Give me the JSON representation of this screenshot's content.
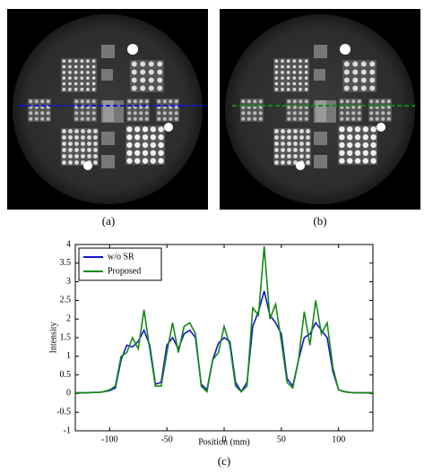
{
  "figure": {
    "captions": [
      "(a)",
      "(b)",
      "(c)"
    ]
  },
  "chart_data": {
    "type": "line",
    "x_label": "Position (mm)",
    "y_label": "Intensity",
    "x": [
      -130,
      -125,
      -120,
      -115,
      -110,
      -105,
      -100,
      -95,
      -90,
      -85,
      -80,
      -75,
      -70,
      -65,
      -60,
      -55,
      -50,
      -45,
      -40,
      -35,
      -30,
      -25,
      -20,
      -15,
      -10,
      -5,
      0,
      5,
      10,
      15,
      20,
      25,
      30,
      35,
      40,
      45,
      50,
      55,
      60,
      65,
      70,
      75,
      80,
      85,
      90,
      95,
      100,
      105,
      110,
      115,
      120,
      125,
      130
    ],
    "series": [
      {
        "name": "w/o SR",
        "color": "#1414d2",
        "values": [
          0.02,
          0.02,
          0.02,
          0.03,
          0.03,
          0.05,
          0.08,
          0.15,
          0.9,
          1.3,
          1.25,
          1.4,
          1.7,
          1.3,
          0.25,
          0.3,
          1.3,
          1.5,
          1.2,
          1.6,
          1.7,
          1.5,
          0.25,
          0.1,
          0.9,
          1.35,
          1.5,
          1.4,
          0.3,
          0.05,
          0.3,
          1.8,
          2.2,
          2.75,
          2.1,
          1.9,
          1.6,
          0.4,
          0.2,
          0.9,
          1.5,
          1.6,
          1.9,
          1.7,
          1.5,
          0.6,
          0.1,
          0.05,
          0.03,
          0.02,
          0.02,
          0.02,
          0.02
        ]
      },
      {
        "name": "Proposed",
        "color": "#138a13",
        "values": [
          0.02,
          0.02,
          0.02,
          0.03,
          0.03,
          0.05,
          0.1,
          0.2,
          1.0,
          1.1,
          1.5,
          1.2,
          2.25,
          1.2,
          0.2,
          0.2,
          1.1,
          1.9,
          1.1,
          1.8,
          1.9,
          1.6,
          0.2,
          0.05,
          0.9,
          1.1,
          1.8,
          1.3,
          0.2,
          0.05,
          0.2,
          2.3,
          2.1,
          3.95,
          2.0,
          2.4,
          1.4,
          0.3,
          0.15,
          0.9,
          2.2,
          1.3,
          2.5,
          1.6,
          1.9,
          0.7,
          0.1,
          0.05,
          0.03,
          0.02,
          0.02,
          0.02,
          0.02
        ]
      }
    ],
    "xlim": [
      -130,
      130
    ],
    "xticks": [
      -100,
      -50,
      0,
      50,
      100
    ],
    "ylim": [
      -1,
      4
    ],
    "yticks": [
      -1,
      -0.5,
      0,
      0.5,
      1,
      1.5,
      2,
      2.5,
      3,
      3.5,
      4
    ],
    "legend": "upper left"
  }
}
